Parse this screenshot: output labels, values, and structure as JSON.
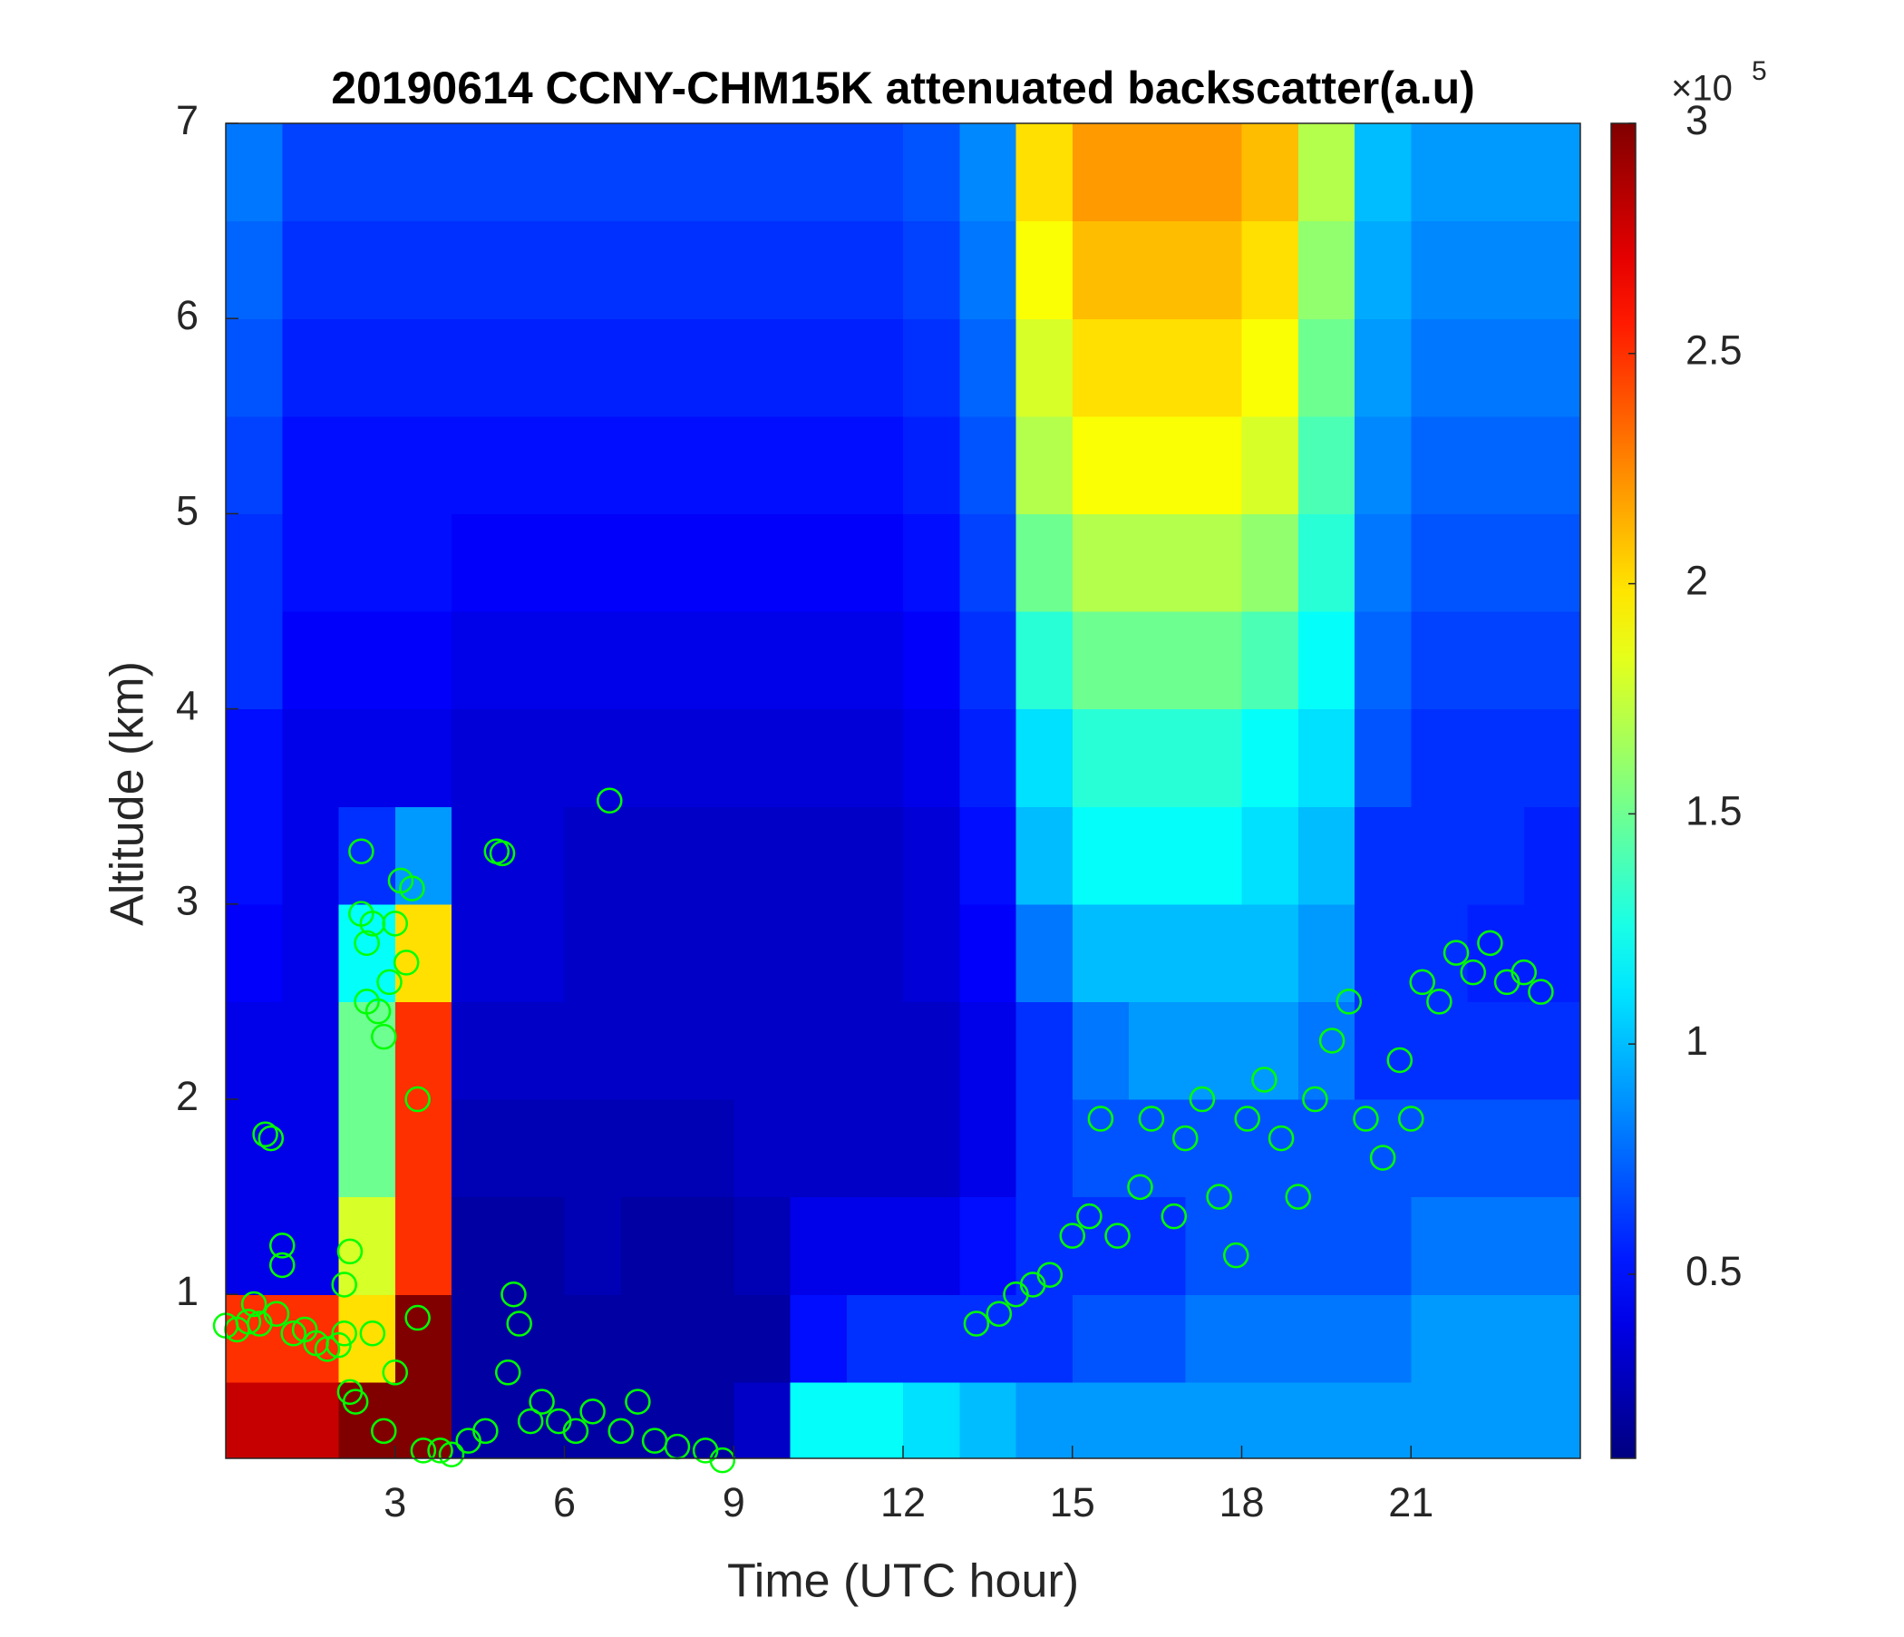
{
  "chart_data": {
    "type": "heatmap",
    "title": "20190614 CCNY-CHM15K attenuated backscatter(a.u)",
    "x_label": "Time (UTC hour)",
    "y_label": "Altitude (km)",
    "xlim": [
      0,
      24
    ],
    "ylim": [
      0.16,
      7
    ],
    "xticks": [
      3,
      6,
      9,
      12,
      15,
      18,
      21
    ],
    "yticks": [
      1,
      2,
      3,
      4,
      5,
      6,
      7
    ],
    "colormap": "jet",
    "clim": [
      0.1,
      3
    ],
    "cticks": [
      0.5,
      1,
      1.5,
      2,
      2.5,
      3
    ],
    "colorbar_scale": {
      "base": "×10",
      "exponent": "5"
    },
    "heatmap": {
      "x": [
        0.5,
        1.5,
        2.5,
        3.5,
        4.5,
        5.5,
        6.5,
        7.5,
        8.5,
        9.5,
        10.5,
        11.5,
        12.5,
        13.5,
        14.5,
        15.5,
        16.5,
        17.5,
        18.5,
        19.5,
        20.5,
        21.5,
        22.5,
        23.5
      ],
      "y": [
        0.35,
        0.75,
        1.25,
        1.75,
        2.25,
        2.75,
        3.25,
        3.75,
        4.25,
        4.75,
        5.25,
        5.75,
        6.25,
        6.75
      ],
      "values": [
        [
          2.8,
          2.8,
          3,
          3,
          0.2,
          0.2,
          0.2,
          0.2,
          0.2,
          0.3,
          1.2,
          1.2,
          1.1,
          1.0,
          0.9,
          0.9,
          0.9,
          0.9,
          0.9,
          0.9,
          0.9,
          0.9,
          0.9,
          0.9
        ],
        [
          2.5,
          2.5,
          2.0,
          3,
          0.2,
          0.2,
          0.2,
          0.2,
          0.2,
          0.2,
          0.5,
          0.6,
          0.6,
          0.6,
          0.6,
          0.7,
          0.7,
          0.8,
          0.8,
          0.8,
          0.8,
          0.9,
          0.9,
          0.9
        ],
        [
          0.4,
          0.4,
          1.8,
          2.5,
          0.2,
          0.2,
          0.25,
          0.2,
          0.2,
          0.25,
          0.4,
          0.4,
          0.4,
          0.5,
          0.6,
          0.6,
          0.6,
          0.7,
          0.7,
          0.7,
          0.7,
          0.8,
          0.8,
          0.8
        ],
        [
          0.4,
          0.4,
          1.5,
          2.5,
          0.25,
          0.25,
          0.25,
          0.25,
          0.25,
          0.3,
          0.3,
          0.3,
          0.3,
          0.4,
          0.6,
          0.7,
          0.7,
          0.7,
          0.7,
          0.7,
          0.7,
          0.7,
          0.7,
          0.7
        ],
        [
          0.4,
          0.4,
          1.5,
          2.5,
          0.3,
          0.3,
          0.3,
          0.3,
          0.3,
          0.3,
          0.3,
          0.3,
          0.3,
          0.4,
          0.6,
          0.8,
          0.9,
          0.9,
          0.9,
          0.8,
          0.6,
          0.6,
          0.6,
          0.6
        ],
        [
          0.45,
          0.4,
          1.2,
          2.0,
          0.35,
          0.35,
          0.3,
          0.3,
          0.3,
          0.3,
          0.3,
          0.3,
          0.35,
          0.45,
          0.8,
          1.0,
          1.0,
          1.0,
          1.0,
          0.9,
          0.6,
          0.6,
          0.55,
          0.55
        ],
        [
          0.5,
          0.4,
          0.6,
          0.9,
          0.35,
          0.35,
          0.3,
          0.3,
          0.3,
          0.3,
          0.3,
          0.3,
          0.35,
          0.5,
          1.0,
          1.2,
          1.2,
          1.2,
          1.1,
          1.0,
          0.6,
          0.6,
          0.6,
          0.55
        ],
        [
          0.5,
          0.4,
          0.4,
          0.4,
          0.35,
          0.35,
          0.35,
          0.35,
          0.35,
          0.35,
          0.35,
          0.35,
          0.4,
          0.55,
          1.1,
          1.3,
          1.3,
          1.3,
          1.2,
          1.1,
          0.7,
          0.6,
          0.6,
          0.6
        ],
        [
          0.6,
          0.45,
          0.45,
          0.45,
          0.4,
          0.4,
          0.4,
          0.4,
          0.4,
          0.4,
          0.4,
          0.4,
          0.45,
          0.6,
          1.3,
          1.5,
          1.5,
          1.5,
          1.4,
          1.2,
          0.75,
          0.65,
          0.65,
          0.65
        ],
        [
          0.6,
          0.5,
          0.5,
          0.5,
          0.45,
          0.45,
          0.45,
          0.45,
          0.45,
          0.45,
          0.45,
          0.45,
          0.5,
          0.65,
          1.5,
          1.7,
          1.7,
          1.7,
          1.6,
          1.3,
          0.8,
          0.7,
          0.7,
          0.7
        ],
        [
          0.65,
          0.5,
          0.5,
          0.5,
          0.5,
          0.5,
          0.5,
          0.5,
          0.5,
          0.5,
          0.5,
          0.5,
          0.55,
          0.7,
          1.7,
          1.9,
          1.9,
          1.9,
          1.8,
          1.4,
          0.85,
          0.75,
          0.75,
          0.75
        ],
        [
          0.7,
          0.55,
          0.55,
          0.55,
          0.55,
          0.55,
          0.55,
          0.55,
          0.55,
          0.55,
          0.55,
          0.55,
          0.6,
          0.75,
          1.8,
          2.0,
          2.0,
          2.0,
          1.9,
          1.5,
          0.9,
          0.8,
          0.8,
          0.8
        ],
        [
          0.75,
          0.6,
          0.6,
          0.6,
          0.6,
          0.6,
          0.6,
          0.6,
          0.6,
          0.6,
          0.6,
          0.6,
          0.65,
          0.8,
          1.9,
          2.1,
          2.1,
          2.1,
          2.0,
          1.6,
          0.95,
          0.85,
          0.85,
          0.85
        ],
        [
          0.8,
          0.65,
          0.65,
          0.65,
          0.65,
          0.65,
          0.65,
          0.65,
          0.65,
          0.65,
          0.65,
          0.65,
          0.7,
          0.85,
          2.0,
          2.2,
          2.2,
          2.2,
          2.1,
          1.7,
          1.0,
          0.9,
          0.9,
          0.9
        ]
      ]
    },
    "scatter": {
      "color": "#00ff00",
      "x": [
        0.0,
        0.2,
        0.4,
        0.5,
        0.6,
        0.7,
        0.8,
        0.9,
        1.0,
        1.0,
        1.2,
        1.4,
        1.6,
        1.8,
        2.0,
        2.1,
        2.1,
        2.2,
        2.2,
        2.3,
        2.4,
        2.4,
        2.5,
        2.5,
        2.6,
        2.6,
        2.7,
        2.8,
        2.8,
        2.9,
        3.0,
        3.0,
        3.1,
        3.2,
        3.3,
        3.4,
        3.4,
        3.5,
        3.8,
        4.0,
        4.3,
        4.6,
        4.8,
        4.9,
        5.0,
        5.1,
        5.2,
        5.4,
        5.6,
        5.9,
        6.2,
        6.5,
        6.8,
        7.0,
        7.3,
        7.6,
        8.0,
        8.5,
        8.8,
        13.3,
        13.7,
        14.0,
        14.3,
        14.6,
        15.0,
        15.3,
        15.5,
        15.8,
        16.2,
        16.4,
        16.8,
        17.0,
        17.3,
        17.6,
        17.9,
        18.1,
        18.4,
        18.7,
        19.0,
        19.3,
        19.6,
        19.9,
        20.2,
        20.5,
        20.8,
        21.0,
        21.2,
        21.5,
        21.8,
        22.1,
        22.4,
        22.7,
        23.0,
        23.3
      ],
      "y": [
        0.84,
        0.82,
        0.86,
        0.95,
        0.85,
        1.82,
        1.8,
        0.9,
        1.15,
        1.25,
        0.8,
        0.82,
        0.75,
        0.72,
        0.74,
        0.8,
        1.05,
        1.22,
        0.5,
        0.45,
        2.95,
        3.27,
        2.8,
        2.5,
        2.9,
        0.8,
        2.45,
        0.3,
        2.32,
        2.6,
        2.9,
        0.6,
        3.12,
        2.7,
        3.08,
        2.0,
        0.88,
        0.2,
        0.2,
        0.18,
        0.25,
        0.3,
        3.27,
        3.26,
        0.6,
        1.0,
        0.85,
        0.35,
        0.45,
        0.35,
        0.3,
        0.4,
        3.53,
        0.3,
        0.45,
        0.25,
        0.22,
        0.2,
        0.15,
        0.85,
        0.9,
        1.0,
        1.05,
        1.1,
        1.3,
        1.4,
        1.9,
        1.3,
        1.55,
        1.9,
        1.4,
        1.8,
        2.0,
        1.5,
        1.2,
        1.9,
        2.1,
        1.8,
        1.5,
        2.0,
        2.3,
        2.5,
        1.9,
        1.7,
        2.2,
        1.9,
        2.6,
        2.5,
        2.75,
        2.65,
        2.8,
        2.6,
        2.65,
        2.55
      ]
    }
  }
}
